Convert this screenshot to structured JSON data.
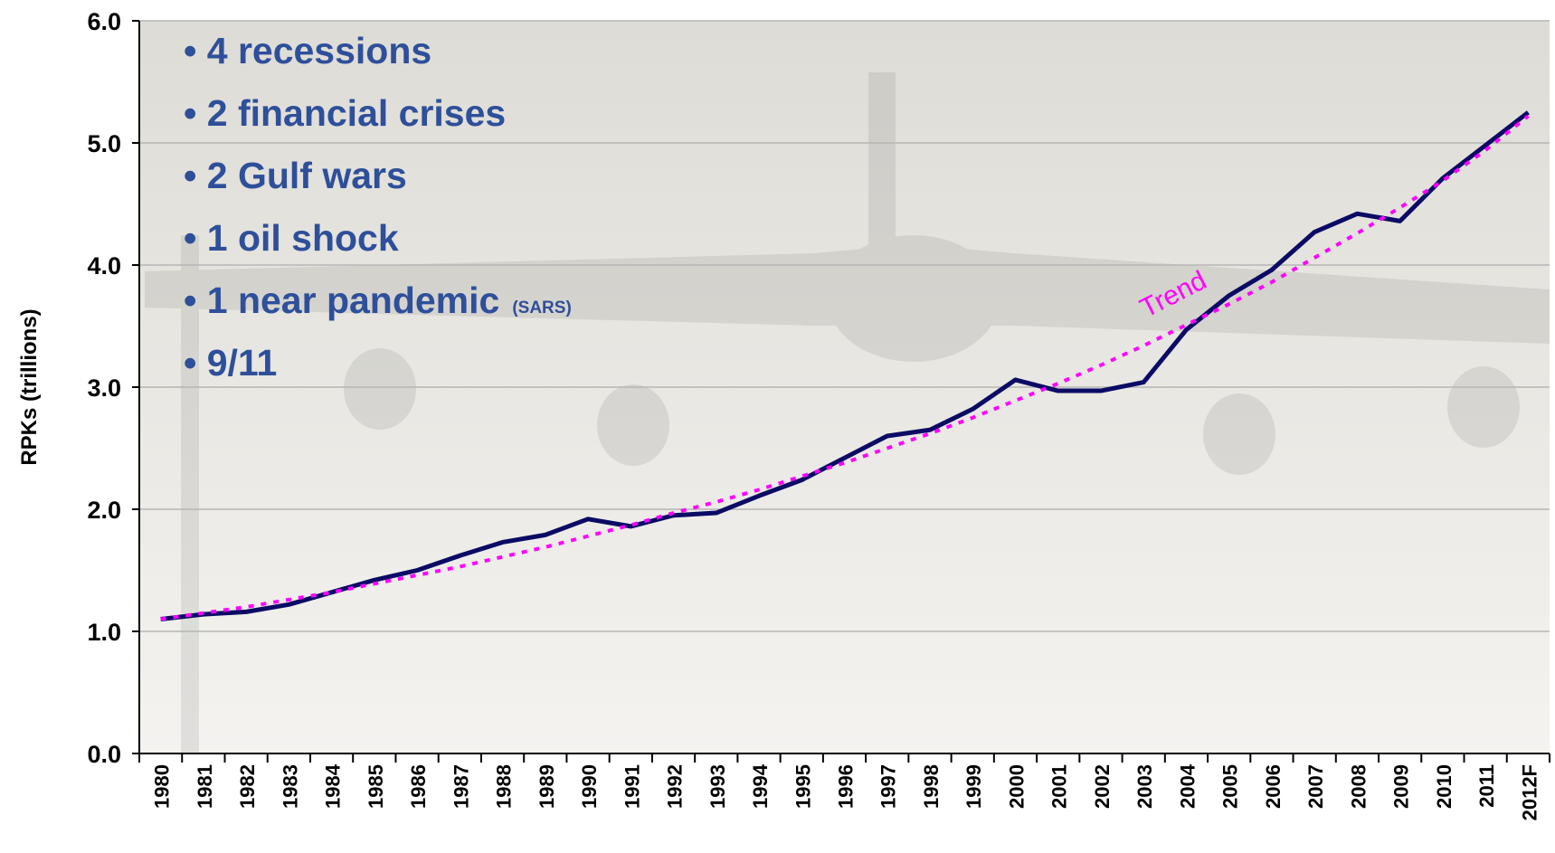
{
  "chart_data": {
    "type": "line",
    "y_label": "RPKs (trillions)",
    "categories": [
      "1980",
      "1981",
      "1982",
      "1983",
      "1984",
      "1985",
      "1986",
      "1987",
      "1988",
      "1989",
      "1990",
      "1991",
      "1992",
      "1993",
      "1994",
      "1995",
      "1996",
      "1997",
      "1998",
      "1999",
      "2000",
      "2001",
      "2002",
      "2003",
      "2004",
      "2005",
      "2006",
      "2007",
      "2008",
      "2009",
      "2010",
      "2011",
      "2012F"
    ],
    "series": [
      {
        "color": "#0b0b66",
        "style": "solid",
        "values": [
          1.1,
          1.14,
          1.16,
          1.22,
          1.32,
          1.42,
          1.5,
          1.62,
          1.73,
          1.79,
          1.92,
          1.86,
          1.95,
          1.97,
          2.11,
          2.24,
          2.42,
          2.6,
          2.65,
          2.82,
          3.06,
          2.97,
          2.97,
          3.04,
          3.47,
          3.75,
          3.96,
          4.27,
          4.42,
          4.36,
          4.71,
          4.98,
          5.25
        ]
      },
      {
        "name": "Trend",
        "color": "#ff00ff",
        "style": "dotted",
        "values": [
          1.1,
          1.15,
          1.2,
          1.26,
          1.32,
          1.39,
          1.46,
          1.53,
          1.61,
          1.69,
          1.78,
          1.87,
          1.97,
          2.06,
          2.16,
          2.27,
          2.38,
          2.5,
          2.62,
          2.75,
          2.89,
          3.03,
          3.18,
          3.34,
          3.51,
          3.68,
          3.86,
          4.06,
          4.26,
          4.47,
          4.69,
          4.94,
          5.22
        ]
      }
    ],
    "ylim": [
      0,
      6
    ],
    "yticks": [
      {
        "value": 0,
        "label": "0.0"
      },
      {
        "value": 1,
        "label": "1.0"
      },
      {
        "value": 2,
        "label": "2.0"
      },
      {
        "value": 3,
        "label": "3.0"
      },
      {
        "value": 4,
        "label": "4.0"
      },
      {
        "value": 5,
        "label": "5.0"
      },
      {
        "value": 6,
        "label": "6.0"
      }
    ],
    "grid": true,
    "annotations": [
      {
        "text": "4 recessions"
      },
      {
        "text": "2 financial crises"
      },
      {
        "text": "2 Gulf wars"
      },
      {
        "text": "1 oil shock"
      },
      {
        "text": "1 near pandemic",
        "note": "(SARS)"
      },
      {
        "text": "9/11"
      }
    ]
  }
}
